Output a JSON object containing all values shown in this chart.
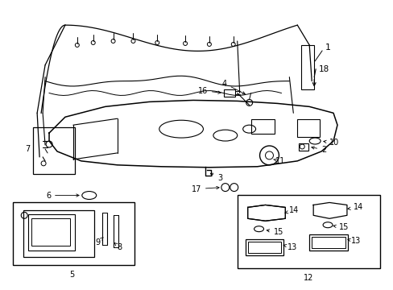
{
  "background_color": "#ffffff",
  "line_color": "#000000",
  "figure_width": 4.89,
  "figure_height": 3.6,
  "dpi": 100,
  "fs": 7.0
}
